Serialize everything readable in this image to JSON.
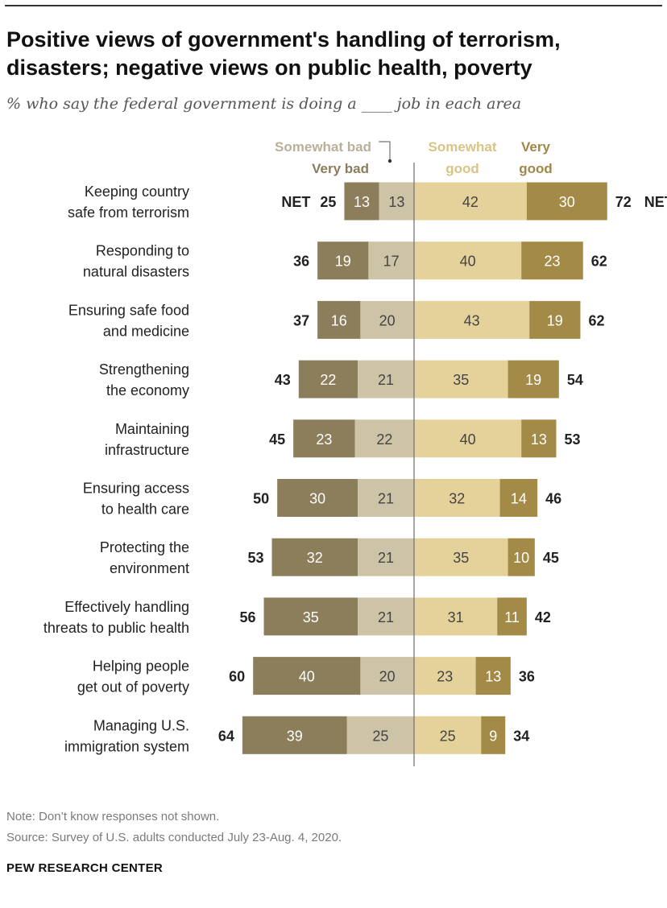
{
  "header": {
    "title": "Positive views of government's handling of terrorism, disasters; negative views on public health, poverty",
    "subtitle": "% who say the federal government is doing a ____ job in each area"
  },
  "footer": {
    "note": "Note: Don’t know responses not shown.",
    "source": "Source: Survey of U.S. adults conducted July 23-Aug. 4, 2020.",
    "brand": "PEW RESEARCH CENTER"
  },
  "chart_data": {
    "type": "bar",
    "orientation": "horizontal-diverging",
    "net_label": "NET",
    "legend": {
      "somewhat_bad": "Somewhat bad",
      "very_bad": "Very bad",
      "somewhat_good": [
        "Somewhat",
        "good"
      ],
      "very_good": [
        "Very",
        "good"
      ]
    },
    "colors": {
      "very_bad": "#8c7d5b",
      "somewhat_bad": "#cdc3a7",
      "somewhat_good": "#e5d29a",
      "very_good": "#a48a47",
      "axis": "#777777",
      "bar_label_light": "#ffffff",
      "bar_label_dark": "#444444"
    },
    "categories": [
      [
        "Keeping country",
        "safe from terrorism"
      ],
      [
        "Responding to",
        "natural disasters"
      ],
      [
        "Ensuring safe food",
        "and medicine"
      ],
      [
        "Strengthening",
        "the economy"
      ],
      [
        "Maintaining",
        "infrastructure"
      ],
      [
        "Ensuring access",
        "to health care"
      ],
      [
        "Protecting the",
        "environment"
      ],
      [
        "Effectively handling",
        "threats to public health"
      ],
      [
        "Helping people",
        "get out of poverty"
      ],
      [
        "Managing U.S.",
        "immigration system"
      ]
    ],
    "series": [
      {
        "name": "Very bad",
        "values": [
          13,
          19,
          16,
          22,
          23,
          30,
          32,
          35,
          40,
          39
        ]
      },
      {
        "name": "Somewhat bad",
        "values": [
          13,
          17,
          20,
          21,
          22,
          21,
          21,
          21,
          20,
          25
        ]
      },
      {
        "name": "Somewhat good",
        "values": [
          42,
          40,
          43,
          35,
          40,
          32,
          35,
          31,
          23,
          25
        ]
      },
      {
        "name": "Very good",
        "values": [
          30,
          23,
          19,
          19,
          13,
          14,
          10,
          11,
          13,
          9
        ]
      }
    ],
    "net_bad": [
      25,
      36,
      37,
      43,
      45,
      50,
      53,
      56,
      60,
      64
    ],
    "net_good": [
      72,
      62,
      62,
      54,
      53,
      46,
      45,
      42,
      36,
      34
    ]
  }
}
